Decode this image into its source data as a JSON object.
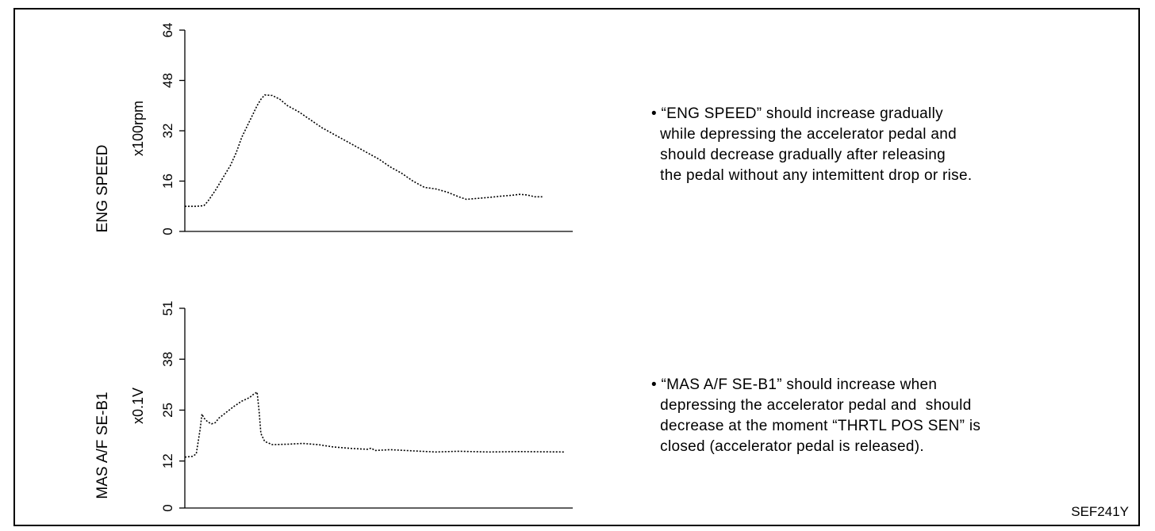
{
  "figure_code": "SEF241Y",
  "chart_data": [
    {
      "type": "line",
      "title": "",
      "ylabel": "ENG SPEED",
      "yunit": "x100rpm",
      "xlabel": "",
      "ylim": [
        0,
        64
      ],
      "yticks": [
        "0",
        "16",
        "32",
        "48",
        "64"
      ],
      "grid": false,
      "series": [
        {
          "values": [
            [
              0,
              8.0
            ],
            [
              3,
              8.0
            ],
            [
              5,
              8.2
            ],
            [
              6,
              9.5
            ],
            [
              8,
              13
            ],
            [
              10,
              17
            ],
            [
              12,
              21
            ],
            [
              13.5,
              25
            ],
            [
              15,
              30
            ],
            [
              17,
              35
            ],
            [
              19,
              40
            ],
            [
              20,
              42
            ],
            [
              21,
              43.4
            ],
            [
              23,
              43.2
            ],
            [
              25,
              42
            ],
            [
              27,
              40
            ],
            [
              30,
              38
            ],
            [
              33,
              35.5
            ],
            [
              36,
              33
            ],
            [
              39,
              31
            ],
            [
              42,
              29
            ],
            [
              45,
              27
            ],
            [
              48,
              25
            ],
            [
              51,
              23
            ],
            [
              54,
              20.5
            ],
            [
              57,
              18.5
            ],
            [
              60,
              16
            ],
            [
              63,
              14
            ],
            [
              66,
              13.5
            ],
            [
              69,
              12.5
            ],
            [
              72,
              11
            ],
            [
              74,
              10.2
            ],
            [
              77,
              10.5
            ],
            [
              80,
              10.8
            ],
            [
              83,
              11.2
            ],
            [
              86,
              11.5
            ],
            [
              88,
              11.8
            ],
            [
              90,
              11.6
            ],
            [
              92,
              11.0
            ],
            [
              94,
              11.0
            ]
          ]
        }
      ],
      "xrange": [
        0,
        102
      ]
    },
    {
      "type": "line",
      "title": "",
      "ylabel": "MAS A/F SE-B1",
      "yunit": "x0.1V",
      "xlabel": "",
      "ylim": [
        0,
        51
      ],
      "yticks": [
        "0",
        "12",
        "25",
        "38",
        "51"
      ],
      "grid": false,
      "series": [
        {
          "values": [
            [
              0,
              13.0
            ],
            [
              2,
              13.2
            ],
            [
              3,
              13.8
            ],
            [
              4,
              20
            ],
            [
              4.5,
              24
            ],
            [
              5,
              23
            ],
            [
              6,
              22
            ],
            [
              7,
              21.5
            ],
            [
              8,
              21.8
            ],
            [
              9,
              23
            ],
            [
              11,
              24.5
            ],
            [
              13,
              26
            ],
            [
              15,
              27.3
            ],
            [
              17,
              28.2
            ],
            [
              18,
              29
            ],
            [
              19,
              29.6
            ],
            [
              19.5,
              25
            ],
            [
              20,
              19
            ],
            [
              21,
              17
            ],
            [
              23,
              16.2
            ],
            [
              27,
              16.3
            ],
            [
              31,
              16.5
            ],
            [
              35,
              16.2
            ],
            [
              39,
              15.6
            ],
            [
              44,
              15.2
            ],
            [
              48,
              15.0
            ],
            [
              49,
              15.3
            ],
            [
              50,
              14.7
            ],
            [
              54,
              14.9
            ],
            [
              60,
              14.6
            ],
            [
              66,
              14.3
            ],
            [
              72,
              14.5
            ],
            [
              80,
              14.3
            ],
            [
              88,
              14.4
            ],
            [
              100,
              14.3
            ]
          ]
        }
      ],
      "xrange": [
        0,
        102
      ]
    }
  ],
  "notes": [
    {
      "lines": [
        "• “ENG SPEED” should increase gradually",
        "  while depressing the accelerator pedal and",
        "  should decrease gradually after releasing",
        "  the pedal without any intemittent drop or rise."
      ]
    },
    {
      "lines": [
        "• “MAS A/F SE-B1” should increase when",
        "  depressing the accelerator pedal and  should",
        "  decrease at the moment “THRTL POS SEN” is",
        "  closed (accelerator pedal is released)."
      ]
    }
  ]
}
